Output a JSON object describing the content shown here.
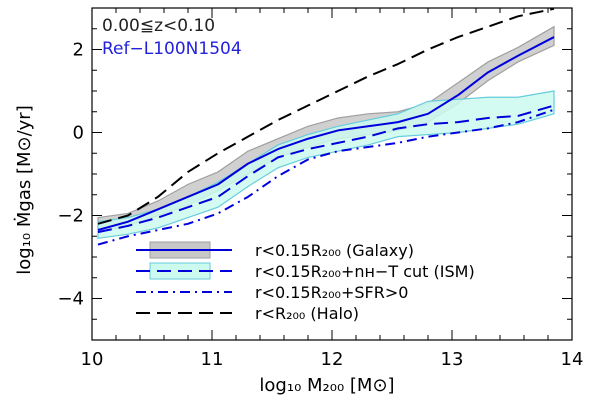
{
  "chart_data": {
    "type": "line",
    "xlabel": "log₁₀ M₂₀₀ [M⊙]",
    "ylabel": "log₁₀ Ṁgas [M⊙/yr]",
    "xlim": [
      10,
      14
    ],
    "ylim": [
      -5,
      3
    ],
    "xticks": [
      10,
      11,
      12,
      13,
      14
    ],
    "xtick_labels": [
      "10",
      "11",
      "12",
      "13",
      "14"
    ],
    "yticks": [
      -4,
      -2,
      0,
      2
    ],
    "ytick_labels": [
      "−4",
      "−2",
      "0",
      "2"
    ],
    "annotations": [
      {
        "text": "0.00≦z<0.10",
        "color": "#222222"
      },
      {
        "text": "Ref−L100N1504",
        "color": "#2222dd"
      }
    ],
    "legend_position": "bottom-right",
    "series": [
      {
        "name": "r<0.15R₂₀₀ (Galaxy)",
        "color": "#0000dd",
        "style": "solid",
        "band_color": "#c8c8c8",
        "band_edge": "#a0a0a0",
        "x": [
          10.05,
          10.3,
          10.55,
          10.8,
          11.05,
          11.3,
          11.55,
          11.8,
          12.05,
          12.3,
          12.55,
          12.8,
          13.05,
          13.3,
          13.55,
          13.85
        ],
        "y": [
          -2.35,
          -2.15,
          -1.85,
          -1.55,
          -1.25,
          -0.75,
          -0.4,
          -0.15,
          0.05,
          0.15,
          0.25,
          0.45,
          0.9,
          1.45,
          1.85,
          2.3
        ],
        "lower": [
          -2.4,
          -2.25,
          -2.0,
          -1.75,
          -1.4,
          -1.0,
          -0.6,
          -0.35,
          -0.15,
          -0.05,
          0.05,
          0.25,
          0.7,
          1.25,
          1.7,
          2.1
        ],
        "upper": [
          -2.05,
          -1.95,
          -1.65,
          -1.25,
          -0.95,
          -0.45,
          -0.15,
          0.15,
          0.35,
          0.45,
          0.5,
          0.7,
          1.2,
          1.7,
          2.05,
          2.55
        ]
      },
      {
        "name": "r<0.15R₂₀₀+nʜ−T cut (ISM)",
        "color": "#0000dd",
        "style": "dash",
        "band_color": "#ccfaee",
        "band_edge": "#66ccdd",
        "x": [
          10.05,
          10.3,
          10.55,
          10.8,
          11.05,
          11.3,
          11.55,
          11.8,
          12.05,
          12.3,
          12.55,
          12.8,
          13.05,
          13.3,
          13.55,
          13.85
        ],
        "y": [
          -2.4,
          -2.25,
          -2.05,
          -1.8,
          -1.55,
          -1.05,
          -0.6,
          -0.4,
          -0.25,
          -0.1,
          0.1,
          0.2,
          0.25,
          0.35,
          0.4,
          0.65
        ],
        "lower": [
          -2.55,
          -2.45,
          -2.3,
          -2.05,
          -1.8,
          -1.3,
          -0.85,
          -0.6,
          -0.45,
          -0.3,
          -0.1,
          -0.05,
          0.0,
          0.1,
          0.2,
          0.45
        ],
        "upper": [
          -2.15,
          -2.05,
          -1.85,
          -1.55,
          -1.2,
          -0.75,
          -0.3,
          -0.05,
          0.15,
          0.3,
          0.45,
          0.75,
          0.8,
          0.85,
          0.85,
          1.0
        ]
      },
      {
        "name": "r<0.15R₂₀₀+SFR>0",
        "color": "#0000dd",
        "style": "dashdot",
        "x": [
          10.05,
          10.3,
          10.55,
          10.8,
          11.05,
          11.3,
          11.55,
          11.8,
          12.05,
          12.3,
          12.55,
          12.8,
          13.05,
          13.3,
          13.55,
          13.85
        ],
        "y": [
          -2.7,
          -2.5,
          -2.35,
          -2.2,
          -1.95,
          -1.55,
          -1.05,
          -0.65,
          -0.45,
          -0.35,
          -0.25,
          -0.1,
          0.0,
          0.1,
          0.25,
          0.55
        ]
      },
      {
        "name": "r<R₂₀₀ (Halo)",
        "color": "#000000",
        "style": "dash",
        "x": [
          10.05,
          10.3,
          10.55,
          10.8,
          11.05,
          11.3,
          11.55,
          11.8,
          12.05,
          12.3,
          12.55,
          12.8,
          13.05,
          13.3,
          13.55,
          13.85
        ],
        "y": [
          -2.2,
          -2.0,
          -1.55,
          -0.95,
          -0.5,
          -0.1,
          0.3,
          0.65,
          1.0,
          1.35,
          1.65,
          2.0,
          2.3,
          2.55,
          2.8,
          2.98
        ]
      }
    ]
  }
}
